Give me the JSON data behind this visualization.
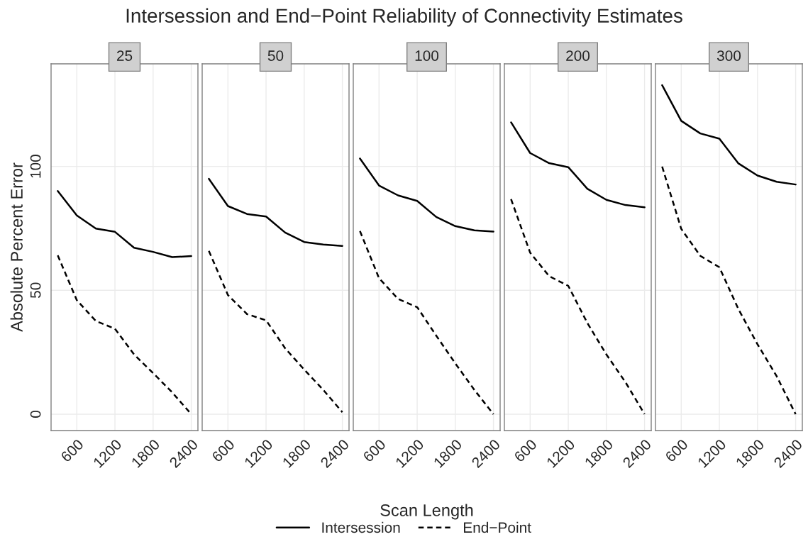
{
  "chart_data": [
    {
      "type": "line",
      "title": "25",
      "ylabel": "Absolute Percent Error",
      "annotations": [
        "Intersession and End−Point Reliability of Connectivity Estimates"
      ],
      "legend": "bottom",
      "grid": true,
      "x": [
        300,
        600,
        900,
        1200,
        1500,
        1800,
        2100,
        2400
      ],
      "xlim": [
        195,
        2505
      ],
      "xticks": [
        600,
        1200,
        1800,
        2400
      ],
      "ylim": [
        -6.6,
        141.4
      ],
      "yticks": [
        0,
        50,
        100
      ],
      "series": [
        {
          "name": "Intersession",
          "color": "#000000",
          "line_style": "solid",
          "values": [
            90.1,
            80.2,
            74.9,
            73.6,
            67.2,
            65.5,
            63.4,
            63.8
          ]
        },
        {
          "name": "End−Point",
          "color": "#000000",
          "line_style": "dashed",
          "values": [
            64.1,
            46.0,
            37.6,
            34.5,
            24.1,
            16.6,
            8.8,
            0
          ]
        }
      ]
    },
    {
      "type": "line",
      "title": "50",
      "tick_labels": "x",
      "grid": true,
      "x": [
        300,
        600,
        900,
        1200,
        1500,
        1800,
        2100,
        2400
      ],
      "xlim": [
        195,
        2505
      ],
      "xticks": [
        600,
        1200,
        1800,
        2400
      ],
      "ylim": [
        -6.6,
        141.4
      ],
      "yticks": [
        0,
        50,
        100
      ],
      "series": [
        {
          "color": "#000000",
          "line_style": "solid",
          "values": [
            95.0,
            84.0,
            80.8,
            79.8,
            73.3,
            69.5,
            68.5,
            67.9
          ]
        },
        {
          "color": "#000000",
          "line_style": "dashed",
          "values": [
            65.9,
            48.1,
            40.4,
            37.9,
            26.6,
            18.0,
            9.8,
            0.8
          ]
        }
      ]
    },
    {
      "type": "line",
      "title": "100",
      "xlabel": "Scan Length",
      "tick_labels": "x",
      "grid": true,
      "x": [
        300,
        600,
        900,
        1200,
        1500,
        1800,
        2100,
        2400
      ],
      "xlim": [
        195,
        2505
      ],
      "xticks": [
        600,
        1200,
        1800,
        2400
      ],
      "ylim": [
        -6.6,
        141.4
      ],
      "yticks": [
        0,
        50,
        100
      ],
      "series": [
        {
          "color": "#000000",
          "line_style": "solid",
          "values": [
            103.2,
            92.3,
            88.3,
            86.1,
            79.6,
            75.9,
            74.2,
            73.7
          ]
        },
        {
          "color": "#000000",
          "line_style": "dashed",
          "values": [
            73.9,
            54.9,
            46.5,
            43.2,
            31.7,
            20.5,
            9.8,
            0
          ]
        }
      ]
    },
    {
      "type": "line",
      "title": "200",
      "tick_labels": "x",
      "grid": true,
      "x": [
        300,
        600,
        900,
        1200,
        1500,
        1800,
        2100,
        2400
      ],
      "xlim": [
        195,
        2505
      ],
      "xticks": [
        600,
        1200,
        1800,
        2400
      ],
      "ylim": [
        -6.6,
        141.4
      ],
      "yticks": [
        0,
        50,
        100
      ],
      "series": [
        {
          "color": "#000000",
          "line_style": "solid",
          "values": [
            117.8,
            105.4,
            101.3,
            99.7,
            91.0,
            86.5,
            84.4,
            83.5
          ]
        },
        {
          "color": "#000000",
          "line_style": "dashed",
          "values": [
            86.8,
            65.2,
            55.7,
            51.8,
            36.8,
            24.1,
            12.9,
            0
          ]
        }
      ]
    },
    {
      "type": "line",
      "title": "300",
      "tick_labels": "x",
      "grid": true,
      "x": [
        300,
        600,
        900,
        1200,
        1500,
        1800,
        2100,
        2400
      ],
      "xlim": [
        195,
        2505
      ],
      "xticks": [
        600,
        1200,
        1800,
        2400
      ],
      "ylim": [
        -6.6,
        141.4
      ],
      "yticks": [
        0,
        50,
        100
      ],
      "series": [
        {
          "color": "#000000",
          "line_style": "solid",
          "values": [
            132.8,
            118.4,
            113.3,
            111.2,
            101.2,
            96.3,
            93.8,
            92.7
          ]
        },
        {
          "color": "#000000",
          "line_style": "dashed",
          "values": [
            99.9,
            74.8,
            63.9,
            59.3,
            42.4,
            28.2,
            15.4,
            0
          ]
        }
      ]
    }
  ]
}
